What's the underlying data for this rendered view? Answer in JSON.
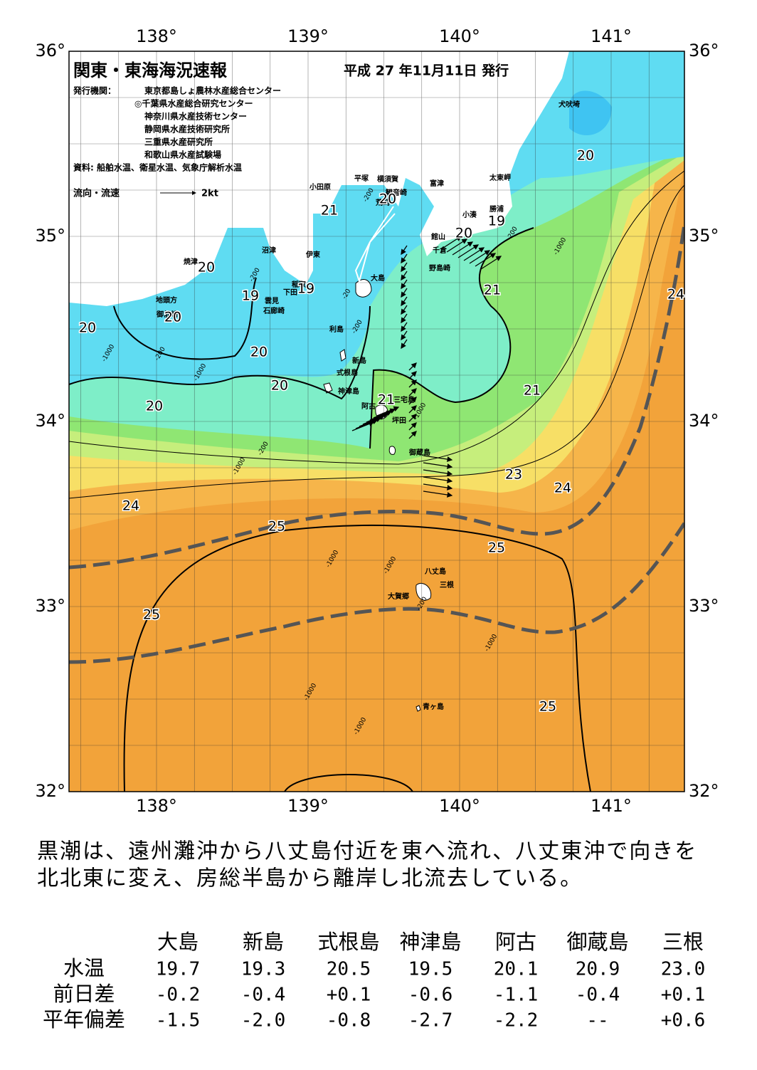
{
  "header": {
    "title": "関東・東海海況速報",
    "issued": "平成 27 年11月11日 発行",
    "publisher_label": "発行機関：",
    "publishers": [
      "東京都島しょ農林水産総合センター",
      "◎千葉県水産総合研究センター",
      "神奈川県水産技術センター",
      "静岡県水産技術研究所",
      "三重県水産研究所",
      "和歌山県水産試験場"
    ],
    "source": "資料: 船舶水温、衛星水温、気象庁解析水温",
    "flow_legend": "流向・流速",
    "flow_speed": "2kt"
  },
  "map": {
    "lon_labels": [
      "138°",
      "139°",
      "140°",
      "141°"
    ],
    "lat_labels": [
      "36°",
      "35°",
      "34°",
      "33°",
      "32°"
    ],
    "place_names": [
      "犬吠埼",
      "太東岬",
      "勝浦",
      "小湊",
      "富津",
      "観音崎",
      "横須賀",
      "平塚",
      "小田原",
      "荒崎",
      "館山",
      "千倉",
      "野島崎",
      "大島",
      "沼津",
      "伊東",
      "焼津",
      "稲取",
      "下田",
      "雲見",
      "石廊崎",
      "地頭方",
      "御前崎",
      "利島",
      "新島",
      "式根島",
      "神津島",
      "三宅島",
      "阿古",
      "坪田",
      "御蔵島",
      "八丈島",
      "三根",
      "大賀郷",
      "青ヶ島"
    ],
    "contour_labels": [
      "20",
      "21",
      "20",
      "20",
      "19",
      "20",
      "19",
      "19",
      "20",
      "20",
      "20",
      "20",
      "20",
      "21",
      "21",
      "21",
      "24",
      "23",
      "24",
      "24",
      "25",
      "25",
      "25",
      "25"
    ],
    "depth_labels": [
      "-200",
      "-200",
      "-20",
      "-200",
      "-1000",
      "-200",
      "-1000",
      "-1000",
      "-200",
      "-1000",
      "-200",
      "-1000",
      "-1000",
      "-200",
      "-1000",
      "-1000",
      "-1000",
      "-1000"
    ]
  },
  "description": [
    "黒潮は、遠州灘沖から八丈島付近を東へ流れ、八丈東沖で向きを",
    "北北東に変え、房総半島から離岸し北流去している。"
  ],
  "table": {
    "columns": [
      "大島",
      "新島",
      "式根島",
      "神津島",
      "阿古",
      "御蔵島",
      "三根"
    ],
    "rows": [
      {
        "label": "水温",
        "cells": [
          "19.7",
          "19.3",
          "20.5",
          "19.5",
          "20.1",
          "20.9",
          "23.0"
        ]
      },
      {
        "label": "前日差",
        "cells": [
          "-0.2",
          "-0.4",
          "+0.1",
          "-0.6",
          "-1.1",
          "-0.4",
          "+0.1"
        ]
      },
      {
        "label": "平年偏差",
        "cells": [
          "-1.5",
          "-2.0",
          "-0.8",
          "-2.7",
          "-2.2",
          "--",
          "+0.6"
        ]
      }
    ]
  }
}
